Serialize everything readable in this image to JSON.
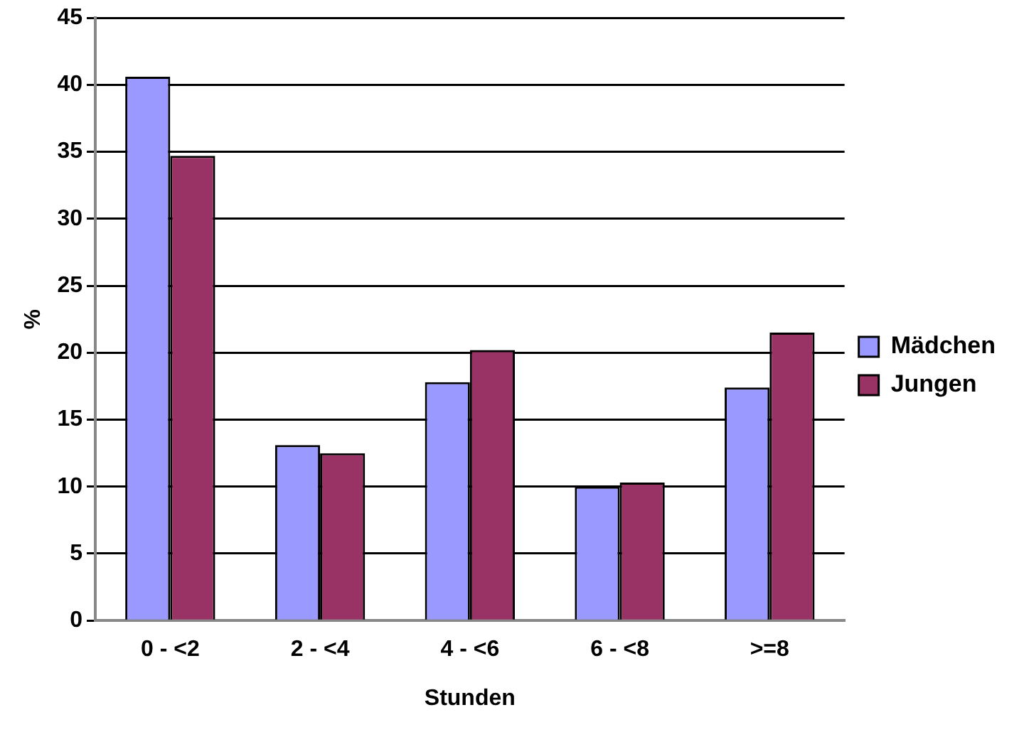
{
  "chart_data": {
    "type": "bar",
    "ylabel": "%",
    "xlabel": "Stunden",
    "categories": [
      "0 - <2",
      "2 - <4",
      "4 - <6",
      "6 - <8",
      ">=8"
    ],
    "series": [
      {
        "name": "Mädchen",
        "color": "#9999ff",
        "values": [
          40.6,
          13.1,
          17.8,
          10.0,
          17.4
        ]
      },
      {
        "name": "Jungen",
        "color": "#993366",
        "values": [
          34.7,
          12.5,
          20.2,
          10.3,
          21.5
        ]
      }
    ],
    "ylim": [
      0,
      45
    ],
    "yticks": [
      0,
      5,
      10,
      15,
      20,
      25,
      30,
      35,
      40,
      45
    ],
    "grid": "y",
    "legend": "right"
  }
}
